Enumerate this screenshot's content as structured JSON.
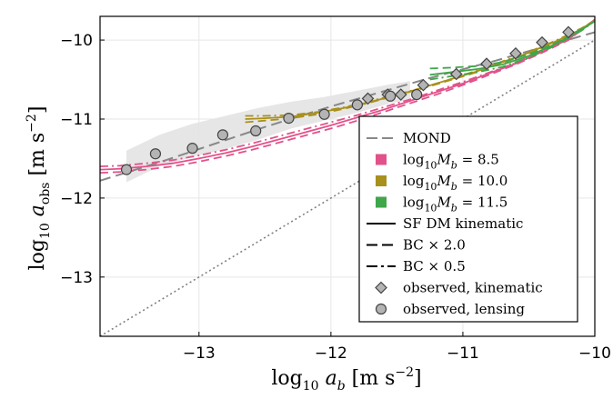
{
  "chart_data": {
    "type": "line",
    "xlabel": {
      "base": "log",
      "sub": "10",
      "main": " a",
      "var_sub": "b",
      "units": " [m s",
      "exp": "−2",
      "close": "]"
    },
    "ylabel": {
      "base": "log",
      "sub": "10",
      "main": " a",
      "var_sub": "obs",
      "units": " [m s",
      "exp": "−2",
      "close": "]"
    },
    "xlim": [
      -13.75,
      -10.0
    ],
    "ylim": [
      -13.75,
      -9.7
    ],
    "xticks": [
      -13,
      -12,
      -11,
      -10
    ],
    "xtick_labels": [
      "−13",
      "−12",
      "−11",
      "−10"
    ],
    "yticks": [
      -13,
      -12,
      -11,
      -10
    ],
    "ytick_labels": [
      "−13",
      "−12",
      "−11",
      "−10"
    ],
    "grid": true,
    "legend_position": "bottom-right",
    "colors": {
      "mond": "#888888",
      "mb85": "#e2528a",
      "mb100": "#a8901c",
      "mb115": "#3fa64a",
      "identity": "#808080",
      "band": "#e3e3e3",
      "marker_fill": "#b4b4b4",
      "marker_edge": "#444444"
    },
    "identity_line": {
      "x": [
        -13.75,
        -10.0
      ],
      "y": [
        -13.75,
        -10.0
      ]
    },
    "mond": {
      "x": [
        -13.75,
        -13.5,
        -13.25,
        -13.0,
        -12.75,
        -12.5,
        -12.25,
        -12.0,
        -11.75,
        -11.5,
        -11.25,
        -11.0,
        -10.75,
        -10.5,
        -10.25,
        -10.0
      ],
      "y": [
        -11.78,
        -11.65,
        -11.52,
        -11.38,
        -11.24,
        -11.1,
        -10.97,
        -10.84,
        -10.72,
        -10.6,
        -10.48,
        -10.37,
        -10.26,
        -10.14,
        -10.02,
        -9.9
      ]
    },
    "lensing_band": {
      "x": [
        -13.55,
        -13.3,
        -13.05,
        -12.8,
        -12.55,
        -12.3,
        -12.05,
        -11.8,
        -11.55,
        -11.4
      ],
      "lower": [
        -11.8,
        -11.6,
        -11.48,
        -11.38,
        -11.26,
        -11.12,
        -11.02,
        -10.92,
        -10.8,
        -10.76
      ],
      "upper": [
        -11.4,
        -11.2,
        -11.06,
        -10.96,
        -10.86,
        -10.78,
        -10.72,
        -10.64,
        -10.56,
        -10.52
      ]
    },
    "series": [
      {
        "name": "log10 Mb = 8.5",
        "color_key": "mb85",
        "styles": [
          "solid",
          "dash",
          "dashdot"
        ],
        "x": [
          -13.75,
          -13.6,
          -13.4,
          -13.2,
          -13.0,
          -12.8,
          -12.6,
          -12.4,
          -12.2,
          -12.0,
          -11.8,
          -11.6,
          -11.4,
          -11.2,
          -11.0,
          -10.8,
          -10.6,
          -10.4,
          -10.2,
          -10.0
        ],
        "y": [
          [
            -11.64,
            -11.63,
            -11.6,
            -11.56,
            -11.5,
            -11.43,
            -11.35,
            -11.26,
            -11.17,
            -11.08,
            -10.98,
            -10.88,
            -10.77,
            -10.66,
            -10.55,
            -10.42,
            -10.3,
            -10.15,
            -9.99,
            -9.74
          ],
          [
            -11.68,
            -11.67,
            -11.64,
            -11.6,
            -11.54,
            -11.47,
            -11.39,
            -11.3,
            -11.21,
            -11.12,
            -11.02,
            -10.91,
            -10.8,
            -10.69,
            -10.57,
            -10.44,
            -10.31,
            -10.16,
            -10.0,
            -9.74
          ],
          [
            -11.6,
            -11.59,
            -11.56,
            -11.52,
            -11.46,
            -11.39,
            -11.31,
            -11.22,
            -11.13,
            -11.04,
            -10.95,
            -10.85,
            -10.75,
            -10.64,
            -10.53,
            -10.41,
            -10.29,
            -10.14,
            -9.98,
            -9.74
          ]
        ]
      },
      {
        "name": "log10 Mb = 10.0",
        "color_key": "mb100",
        "styles": [
          "solid",
          "dash",
          "dashdot"
        ],
        "x": [
          -12.65,
          -12.5,
          -12.3,
          -12.1,
          -11.9,
          -11.7,
          -11.5,
          -11.3,
          -11.1,
          -10.9,
          -10.7,
          -10.5,
          -10.3,
          -10.1,
          -10.0
        ],
        "y": [
          [
            -11.0,
            -10.99,
            -10.97,
            -10.92,
            -10.86,
            -10.78,
            -10.7,
            -10.6,
            -10.5,
            -10.4,
            -10.28,
            -10.16,
            -10.02,
            -9.86,
            -9.75
          ],
          [
            -11.04,
            -11.02,
            -10.99,
            -10.94,
            -10.87,
            -10.79,
            -10.7,
            -10.61,
            -10.51,
            -10.41,
            -10.29,
            -10.17,
            -10.03,
            -9.87,
            -9.75
          ],
          [
            -10.96,
            -10.96,
            -10.95,
            -10.91,
            -10.85,
            -10.77,
            -10.69,
            -10.6,
            -10.5,
            -10.39,
            -10.27,
            -10.15,
            -10.01,
            -9.85,
            -9.75
          ]
        ]
      },
      {
        "name": "log10 Mb = 11.5",
        "color_key": "mb115",
        "styles": [
          "solid",
          "dash",
          "dashdot"
        ],
        "x": [
          -11.25,
          -11.1,
          -10.9,
          -10.7,
          -10.5,
          -10.3,
          -10.1,
          -10.0
        ],
        "y": [
          [
            -10.44,
            -10.41,
            -10.37,
            -10.31,
            -10.2,
            -10.05,
            -9.87,
            -9.76
          ],
          [
            -10.36,
            -10.35,
            -10.33,
            -10.28,
            -10.18,
            -10.04,
            -9.86,
            -9.76
          ],
          [
            -10.5,
            -10.46,
            -10.41,
            -10.34,
            -10.22,
            -10.07,
            -9.88,
            -9.76
          ]
        ]
      }
    ],
    "observed_kinematic": {
      "x": [
        -11.72,
        -11.57,
        -11.47,
        -11.3,
        -11.05,
        -10.82,
        -10.6,
        -10.4,
        -10.2
      ],
      "y": [
        -10.74,
        -10.69,
        -10.69,
        -10.57,
        -10.43,
        -10.3,
        -10.17,
        -10.03,
        -9.9
      ]
    },
    "observed_lensing": {
      "x": [
        -13.55,
        -13.33,
        -13.05,
        -12.82,
        -12.57,
        -12.32,
        -12.05,
        -11.8,
        -11.55,
        -11.35
      ],
      "y": [
        -11.64,
        -11.44,
        -11.37,
        -11.2,
        -11.15,
        -10.99,
        -10.94,
        -10.82,
        -10.71,
        -10.69
      ]
    },
    "legend": [
      {
        "kind": "line",
        "style": "dash",
        "color_key": "mond",
        "text": "MOND"
      },
      {
        "kind": "square",
        "color_key": "mb85",
        "text": "log",
        "sub": "10",
        "rest": "M",
        "var_sub": "b",
        "eq": " = 8.5"
      },
      {
        "kind": "square",
        "color_key": "mb100",
        "text": "log",
        "sub": "10",
        "rest": "M",
        "var_sub": "b",
        "eq": " = 10.0"
      },
      {
        "kind": "square",
        "color_key": "mb115",
        "text": "log",
        "sub": "10",
        "rest": "M",
        "var_sub": "b",
        "eq": " = 11.5"
      },
      {
        "kind": "line",
        "style": "solid",
        "color_key": "black",
        "text": "SF DM kinematic"
      },
      {
        "kind": "line",
        "style": "dash",
        "color_key": "black",
        "text": "BC × 2.0"
      },
      {
        "kind": "line",
        "style": "dashdot",
        "color_key": "black",
        "text": "BC × 0.5"
      },
      {
        "kind": "diamond",
        "text": "observed,  kinematic"
      },
      {
        "kind": "circle",
        "text": "observed,  lensing"
      }
    ]
  }
}
